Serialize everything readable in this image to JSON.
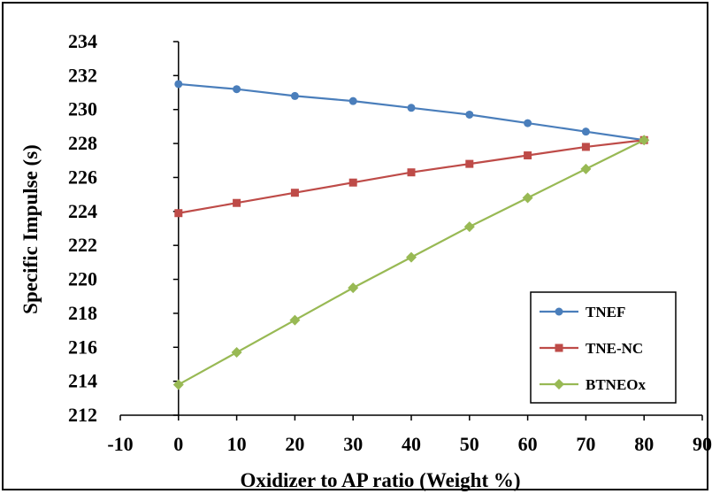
{
  "chart_data": {
    "type": "line",
    "xlabel": "Oxidizer  to AP ratio (Weight  %)",
    "ylabel": "Specific Impulse  (s)",
    "xlim": [
      -10,
      90
    ],
    "ylim": [
      212,
      234
    ],
    "x_ticks": [
      "-10",
      "0",
      "10",
      "20",
      "30",
      "40",
      "50",
      "60",
      "70",
      "80",
      "90"
    ],
    "y_ticks": [
      "212",
      "214",
      "216",
      "218",
      "220",
      "222",
      "224",
      "226",
      "228",
      "230",
      "232",
      "234"
    ],
    "grid": false,
    "legend_position": "bottom-right",
    "x": [
      0,
      10,
      20,
      30,
      40,
      50,
      60,
      70,
      80
    ],
    "series": [
      {
        "name": "TNEF",
        "color": "#4a7ebb",
        "marker": "circle",
        "values": [
          231.5,
          231.2,
          230.8,
          230.5,
          230.1,
          229.7,
          229.2,
          228.7,
          228.2
        ]
      },
      {
        "name": "TNE-NC",
        "color": "#be4b48",
        "marker": "square",
        "values": [
          223.9,
          224.5,
          225.1,
          225.7,
          226.3,
          226.8,
          227.3,
          227.8,
          228.2
        ]
      },
      {
        "name": "BTNEOx",
        "color": "#98b954",
        "marker": "diamond",
        "values": [
          213.8,
          215.7,
          217.6,
          219.5,
          221.3,
          223.1,
          224.8,
          226.5,
          228.2
        ]
      }
    ]
  }
}
